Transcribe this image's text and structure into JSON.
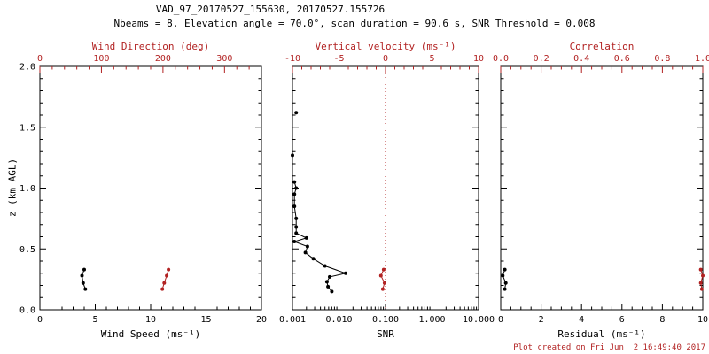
{
  "header": {
    "title": "VAD_97_20170527_155630, 20170527.155726",
    "subtitle": "Nbeams = 8, Elevation angle = 70.0°, scan duration = 90.6 s, SNR Threshold = 0.008"
  },
  "footer": {
    "credit": "Plot created on Fri Jun  2 16:49:40 2017"
  },
  "colors": {
    "accent_red": "#b22222",
    "data_black": "#000000",
    "background": "#ffffff"
  },
  "chart_data": {
    "type": "scatter",
    "y_axis": {
      "label": "z (km AGL)",
      "min": 0,
      "max": 2,
      "tick_values": [
        0,
        0.5,
        1,
        1.5,
        2
      ],
      "tick_labels": [
        "0.0",
        "0.5",
        "1.0",
        "1.5",
        "2.0"
      ],
      "minor_step": 0.1
    },
    "panels": [
      {
        "id": "wind",
        "bottom_axis": {
          "label": "Wind Speed (ms⁻¹)",
          "min": 0,
          "max": 20,
          "tick_values": [
            0,
            5,
            10,
            15,
            20
          ],
          "tick_labels": [
            "0",
            "5",
            "10",
            "15",
            "20"
          ],
          "minor_step": 1,
          "color": "#000000"
        },
        "top_axis": {
          "label": "Wind Direction (deg)",
          "min": 0,
          "max": 360,
          "tick_values": [
            0,
            100,
            200,
            300
          ],
          "tick_labels": [
            "0",
            "100",
            "200",
            "300"
          ],
          "minor_step": 20,
          "color": "#b22222"
        },
        "series": [
          {
            "name": "wind-speed",
            "axis": "bottom",
            "color": "#000000",
            "line": true,
            "points": [
              [
                4.1,
                0.17
              ],
              [
                3.9,
                0.22
              ],
              [
                3.8,
                0.28
              ],
              [
                4.0,
                0.33
              ]
            ]
          },
          {
            "name": "wind-direction",
            "axis": "top",
            "color": "#b22222",
            "line": true,
            "points": [
              [
                199,
                0.17
              ],
              [
                202,
                0.22
              ],
              [
                206,
                0.28
              ],
              [
                209,
                0.33
              ]
            ]
          }
        ]
      },
      {
        "id": "snr",
        "bottom_axis": {
          "label": "SNR",
          "min": 0.001,
          "max": 10,
          "scale": "log",
          "tick_values": [
            0.001,
            0.01,
            0.1,
            1,
            10
          ],
          "tick_labels": [
            "0.001",
            "0.010",
            "0.100",
            "1.000",
            "10.000"
          ],
          "color": "#000000"
        },
        "top_axis": {
          "label": "Vertical velocity (ms⁻¹)",
          "min": -10,
          "max": 10,
          "tick_values": [
            -10,
            -5,
            0,
            5,
            10
          ],
          "tick_labels": [
            "-10",
            "-5",
            "0",
            "5",
            "10"
          ],
          "minor_step": 1,
          "color": "#b22222"
        },
        "reflines": [
          {
            "axis": "bottom",
            "value": 0.1,
            "color": "#b22222",
            "style": "dotted"
          }
        ],
        "series": [
          {
            "name": "snr-profile",
            "axis": "bottom",
            "color": "#000000",
            "line": true,
            "points": [
              [
                0.007,
                0.15
              ],
              [
                0.0058,
                0.19
              ],
              [
                0.0055,
                0.23
              ],
              [
                0.0063,
                0.27
              ],
              [
                0.0139,
                0.3
              ],
              [
                0.005,
                0.36
              ],
              [
                0.0028,
                0.42
              ],
              [
                0.0019,
                0.47
              ],
              [
                0.0021,
                0.52
              ],
              [
                0.0011,
                0.56
              ],
              [
                0.002,
                0.59
              ],
              [
                0.0012,
                0.63
              ],
              [
                0.0012,
                0.68
              ],
              [
                0.0012,
                0.75
              ],
              [
                0.0011,
                0.85
              ],
              [
                0.0011,
                0.95
              ],
              [
                0.0012,
                1.0
              ],
              [
                0.0011,
                1.05
              ]
            ]
          },
          {
            "name": "snr-upper",
            "axis": "bottom",
            "color": "#000000",
            "line": false,
            "points": [
              [
                0.001,
                1.27
              ],
              [
                0.0012,
                1.62
              ]
            ]
          },
          {
            "name": "vertical-velocity",
            "axis": "top",
            "color": "#b22222",
            "line": true,
            "points": [
              [
                -0.3,
                0.17
              ],
              [
                -0.1,
                0.22
              ],
              [
                -0.5,
                0.28
              ],
              [
                -0.2,
                0.33
              ]
            ]
          }
        ]
      },
      {
        "id": "residual",
        "bottom_axis": {
          "label": "Residual (ms⁻¹)",
          "min": 0,
          "max": 10,
          "tick_values": [
            0,
            2,
            4,
            6,
            8,
            10
          ],
          "tick_labels": [
            "0",
            "2",
            "4",
            "6",
            "8",
            "10"
          ],
          "minor_step": 0.5,
          "color": "#000000"
        },
        "top_axis": {
          "label": "Correlation",
          "min": 0,
          "max": 1,
          "tick_values": [
            0,
            0.2,
            0.4,
            0.6,
            0.8,
            1
          ],
          "tick_labels": [
            "0.0",
            "0.2",
            "0.4",
            "0.6",
            "0.8",
            "1.0"
          ],
          "minor_step": 0.05,
          "color": "#b22222"
        },
        "series": [
          {
            "name": "residual",
            "axis": "bottom",
            "color": "#000000",
            "line": true,
            "points": [
              [
                0.2,
                0.17
              ],
              [
                0.25,
                0.22
              ],
              [
                0.1,
                0.28
              ],
              [
                0.2,
                0.33
              ]
            ]
          },
          {
            "name": "correlation",
            "axis": "top",
            "color": "#b22222",
            "line": true,
            "points": [
              [
                0.995,
                0.17
              ],
              [
                0.99,
                0.22
              ],
              [
                1.0,
                0.28
              ],
              [
                0.99,
                0.33
              ]
            ]
          }
        ]
      }
    ]
  }
}
